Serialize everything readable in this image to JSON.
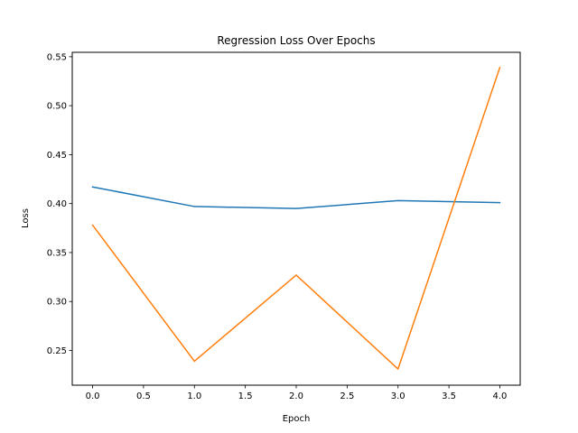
{
  "chart_data": {
    "type": "line",
    "title": "Regression Loss Over Epochs",
    "xlabel": "Epoch",
    "ylabel": "Loss",
    "x": [
      0,
      1,
      2,
      3,
      4
    ],
    "xlim": [
      -0.2,
      4.2
    ],
    "ylim": [
      0.2145,
      0.5545
    ],
    "xticks": [
      "0.0",
      "0.5",
      "1.0",
      "1.5",
      "2.0",
      "2.5",
      "3.0",
      "3.5",
      "4.0"
    ],
    "yticks": [
      "0.25",
      "0.30",
      "0.35",
      "0.40",
      "0.45",
      "0.50",
      "0.55"
    ],
    "grid": false,
    "legend": false,
    "series": [
      {
        "color": "#1f77b4",
        "values": [
          0.417,
          0.397,
          0.395,
          0.403,
          0.401
        ]
      },
      {
        "color": "#ff7f0e",
        "values": [
          0.378,
          0.239,
          0.327,
          0.231,
          0.539
        ]
      }
    ]
  }
}
